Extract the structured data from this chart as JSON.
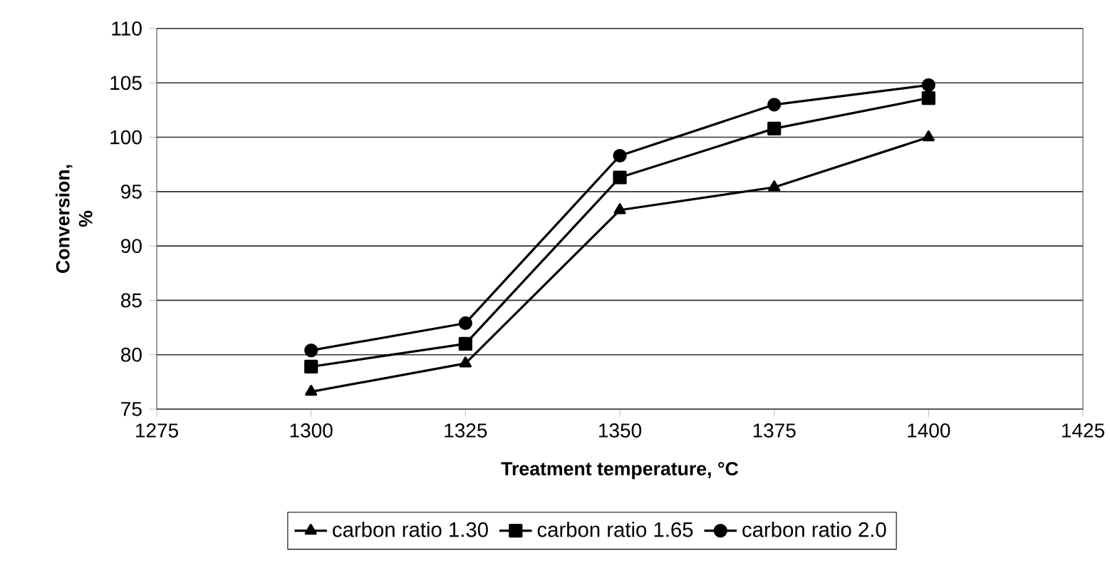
{
  "chart_data": {
    "type": "line",
    "xlabel": "Treatment  temperature, °C",
    "ylabel": "Conversion, %",
    "x": [
      1300,
      1325,
      1350,
      1375,
      1400
    ],
    "series": [
      {
        "name": "carbon ratio  1.30",
        "color": "#000000",
        "marker": "triangle",
        "values": [
          76.6,
          79.2,
          93.3,
          95.4,
          100.0
        ]
      },
      {
        "name": "carbon ratio  1.65",
        "color": "#000000",
        "marker": "square",
        "values": [
          78.9,
          81.0,
          96.3,
          100.8,
          103.6
        ]
      },
      {
        "name": "carbon ratio  2.0",
        "color": "#000000",
        "marker": "circle",
        "values": [
          80.4,
          82.9,
          98.3,
          103.0,
          104.8
        ]
      }
    ],
    "xlim": [
      1275,
      1425
    ],
    "xticks": [
      1275,
      1300,
      1325,
      1350,
      1375,
      1400,
      1425
    ],
    "ylim": [
      75,
      110
    ],
    "yticks": [
      75,
      80,
      85,
      90,
      95,
      100,
      105,
      110
    ],
    "grid": "y",
    "legend": "bottom",
    "line_style": "solid"
  }
}
